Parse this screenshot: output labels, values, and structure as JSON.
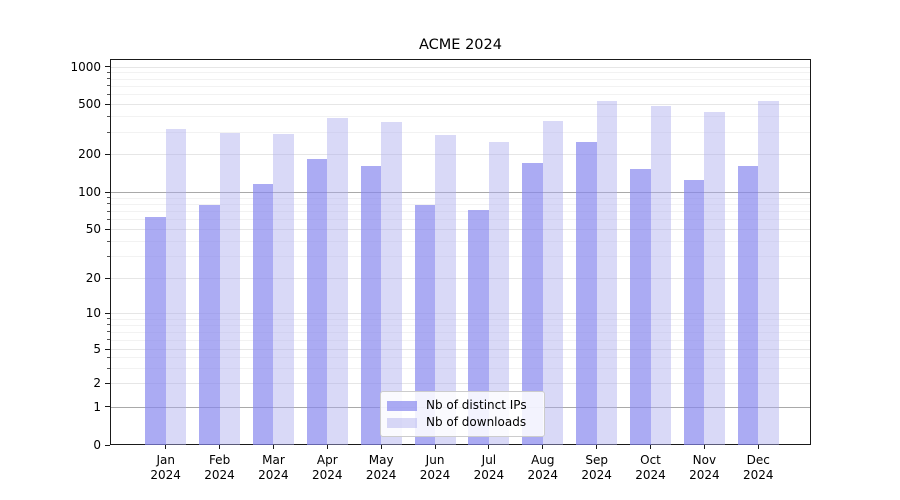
{
  "chart_data": {
    "type": "bar",
    "title": "ACME 2024",
    "categories": [
      "Jan",
      "Feb",
      "Mar",
      "Apr",
      "May",
      "Jun",
      "Jul",
      "Aug",
      "Sep",
      "Oct",
      "Nov",
      "Dec"
    ],
    "xtick_year": "2024",
    "series": [
      {
        "name": "Nb of distinct IPs",
        "color": "#8888ee",
        "alpha": 0.7,
        "values": [
          63,
          78,
          115,
          185,
          160,
          78,
          72,
          170,
          250,
          152,
          124,
          162
        ]
      },
      {
        "name": "Nb of downloads",
        "color": "#aaaaee",
        "alpha": 0.45,
        "values": [
          315,
          293,
          290,
          385,
          363,
          283,
          248,
          365,
          530,
          480,
          435,
          525
        ]
      }
    ],
    "yscale": "symlog",
    "ytick_labels": [
      "0",
      "1",
      "2",
      "5",
      "10",
      "20",
      "50",
      "100",
      "200",
      "500",
      "1000"
    ],
    "ytick_values": [
      0,
      1,
      2,
      5,
      10,
      20,
      50,
      100,
      200,
      500,
      1000
    ],
    "minor_ytick_values": [
      3,
      4,
      6,
      7,
      8,
      9,
      30,
      40,
      60,
      70,
      80,
      90,
      300,
      400,
      600,
      700,
      800,
      900
    ],
    "ylim": [
      0,
      1000
    ],
    "grid": "both",
    "legend_position": "lower center",
    "colors": {
      "grid_major_dark": "#a9a9a9",
      "grid_major": "#e6e6e6",
      "grid_minor": "#f2f2f2",
      "axis": "#1a1a1a"
    },
    "dark_grid_values": [
      1,
      100
    ]
  }
}
